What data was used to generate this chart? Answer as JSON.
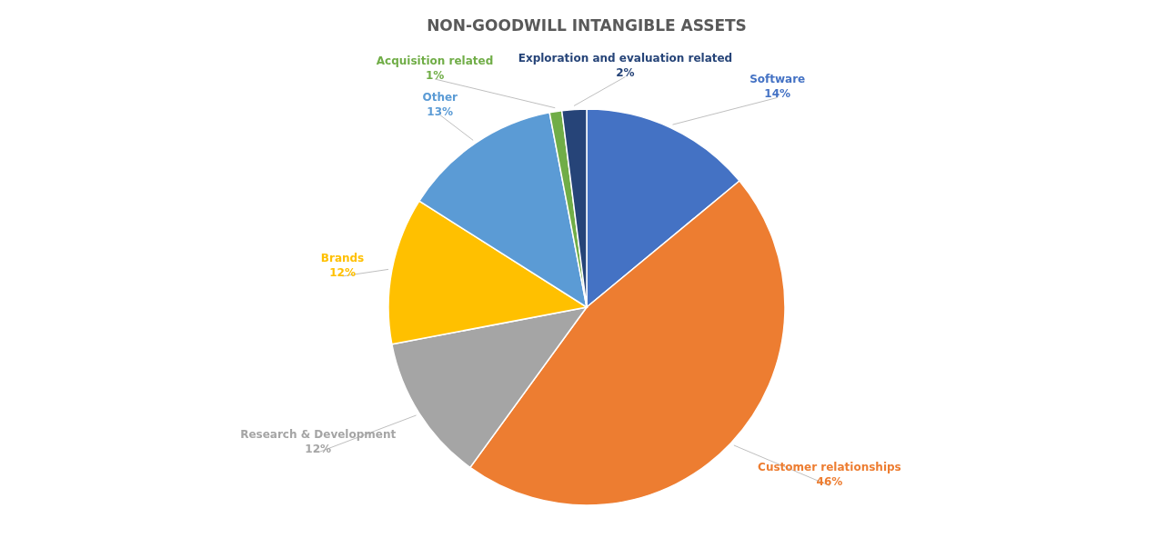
{
  "chart_data": {
    "type": "pie",
    "title": "NON-GOODWILL INTANGIBLE ASSETS",
    "categories": [
      "Software",
      "Customer relationships",
      "Research & Development",
      "Brands",
      "Other",
      "Acquisition related",
      "Exploration and evaluation related"
    ],
    "values": [
      14,
      46,
      12,
      12,
      13,
      1,
      2
    ],
    "colors": [
      "#4472c4",
      "#ed7d31",
      "#a5a5a5",
      "#ffc000",
      "#5b9bd5",
      "#70ad47",
      "#264478"
    ],
    "value_labels": [
      "14%",
      "46%",
      "12%",
      "12%",
      "13%",
      "1%",
      "2%"
    ],
    "legend": false
  }
}
